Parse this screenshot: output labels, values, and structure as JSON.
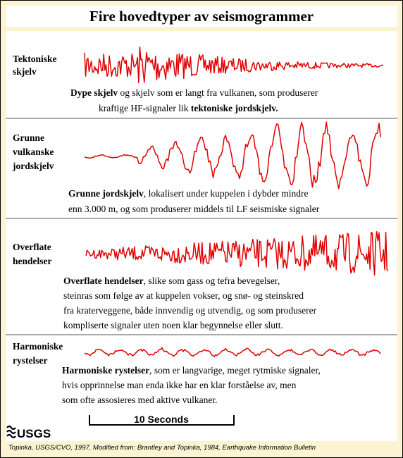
{
  "title": "Fire hovedtyper av seismogrammer",
  "panels": [
    {
      "label": [
        "Tektoniske",
        "skjelv"
      ],
      "description": [
        [
          {
            "text": "Dype skjelv",
            "bold": true
          },
          {
            "text": " og skjelv som er langt fra vulkanen, som produserer",
            "bold": false
          }
        ],
        [
          {
            "text": "kraftige HF-signaler lik ",
            "bold": false
          },
          {
            "text": "tektoniske jordskjelv.",
            "bold": true
          }
        ]
      ]
    },
    {
      "label": [
        "Grunne",
        "vulkanske",
        "jordskjelv"
      ],
      "description": [
        [
          {
            "text": "Grunne jordskjelv",
            "bold": true
          },
          {
            "text": ", lokalisert under kuppelen i dybder mindre",
            "bold": false
          }
        ],
        [
          {
            "text": "enn 3.000 m, og som produserer middels til LF seismiske signaler",
            "bold": false
          }
        ]
      ]
    },
    {
      "label": [
        "Overflate",
        "hendelser"
      ],
      "description": [
        [
          {
            "text": "Overflate hendelser",
            "bold": true
          },
          {
            "text": ", slike som gass og tefra bevegelser,",
            "bold": false
          }
        ],
        [
          {
            "text": "steinras som følge av at kuppelen vokser, og snø- og steinskred",
            "bold": false
          }
        ],
        [
          {
            "text": "fra kraterveggene, både innvendig og utvendig, og som produserer",
            "bold": false
          }
        ],
        [
          {
            "text": "kompliserte signaler uten noen klar begynnelse eller slutt.",
            "bold": false
          }
        ]
      ]
    },
    {
      "label": [
        "Harmoniske",
        "rystelser"
      ],
      "description": [
        [
          {
            "text": "Harmoniske rystelser",
            "bold": true
          },
          {
            "text": ", som er langvarige, meget rytmiske signaler,",
            "bold": false
          }
        ],
        [
          {
            "text": "hvis opprinnelse man enda ikke har en klar forståelse av, men",
            "bold": false
          }
        ],
        [
          {
            "text": "som ofte assosieres med aktive vulkaner.",
            "bold": false
          }
        ]
      ]
    }
  ],
  "scale_bar": "10 Seconds",
  "logo": "USGS",
  "credit": "Topinka, USGS/CVO, 1997, Modified from: Brantley and Topinka, 1984, Earthquake Information Bulletin"
}
